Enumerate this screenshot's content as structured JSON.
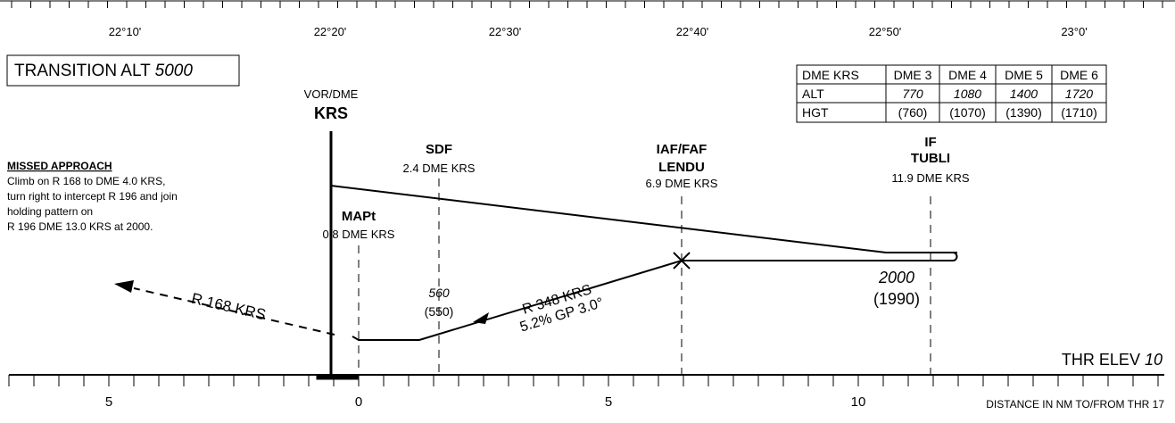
{
  "top_scale": {
    "labels": [
      "22°10'",
      "22°20'",
      "22°30'",
      "22°40'",
      "22°50'",
      "23°0'"
    ]
  },
  "transition": {
    "label": "TRANSITION ALT",
    "altitude": "5000"
  },
  "table": {
    "header": [
      "DME KRS",
      "DME 3",
      "DME 4",
      "DME 5",
      "DME 6"
    ],
    "rows": [
      [
        "ALT",
        "770",
        "1080",
        "1400",
        "1720"
      ],
      [
        "HGT",
        "(760)",
        "(1070)",
        "(1390)",
        "(1710)"
      ]
    ]
  },
  "navaid": {
    "type": "VOR/DME",
    "ident": "KRS"
  },
  "missed_approach": {
    "title": "MISSED APPROACH",
    "lines": [
      "Climb on R 168 to DME 4.0 KRS,",
      "turn right to intercept R 196 and join",
      "holding pattern on",
      "R 196 DME 13.0 KRS at 2000."
    ]
  },
  "fixes": [
    {
      "name": "SDF",
      "dist": "2.4 DME KRS"
    },
    {
      "role": "IAF/FAF",
      "name": "LENDU",
      "dist": "6.9 DME KRS"
    },
    {
      "role": "IF",
      "name": "TUBLI",
      "dist": "11.9 DME KRS"
    },
    {
      "name": "MAPt",
      "dist": "0.8 DME KRS"
    }
  ],
  "sdf_alt": {
    "alt": "560",
    "hgt": "(550)"
  },
  "if_alt": {
    "alt": "2000",
    "hgt": "(1990)"
  },
  "final": {
    "radial": "R 348 KRS",
    "gradient": "5.2% GP 3.0°"
  },
  "missed_radial": "R 168 KRS",
  "thr": {
    "label": "THR ELEV",
    "elev": "10"
  },
  "bottom_scale": {
    "labels": [
      "5",
      "0",
      "5",
      "10"
    ],
    "caption": "DISTANCE IN NM TO/FROM THR 17"
  }
}
